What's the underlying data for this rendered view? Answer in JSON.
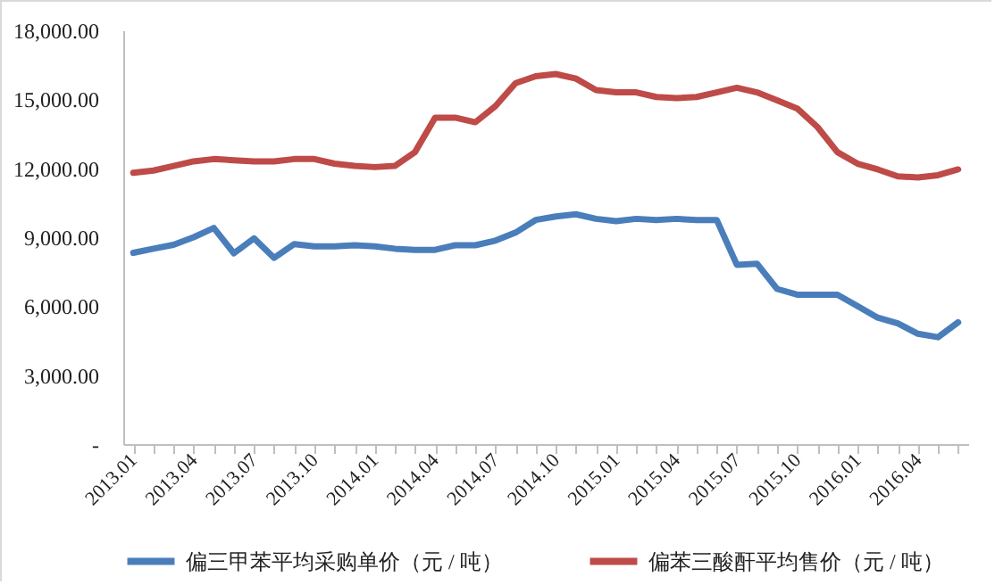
{
  "chart_data": {
    "type": "line",
    "categories": [
      "2013.01",
      null,
      null,
      "2013.04",
      null,
      null,
      "2013.07",
      null,
      null,
      "2013.10",
      null,
      null,
      "2014.01",
      null,
      null,
      "2014.04",
      null,
      null,
      "2014.07",
      null,
      null,
      "2014.10",
      null,
      null,
      "2015.01",
      null,
      null,
      "2015.04",
      null,
      null,
      "2015.07",
      null,
      null,
      "2015.10",
      null,
      null,
      "2016.01",
      null,
      null,
      "2016.04",
      null,
      null
    ],
    "series": [
      {
        "name": "偏三甲苯平均采购单价（元 / 吨）",
        "color": "#4a7ebb",
        "values": [
          8320,
          8500,
          8670,
          9000,
          9400,
          8300,
          8950,
          8100,
          8700,
          8600,
          8600,
          8650,
          8600,
          8500,
          8450,
          8450,
          8650,
          8650,
          8850,
          9200,
          9750,
          9900,
          10000,
          9800,
          9700,
          9800,
          9750,
          9800,
          9750,
          9750,
          7800,
          7850,
          6750,
          6500,
          6500,
          6500,
          6000,
          5500,
          5250,
          4800,
          4650,
          5300
        ]
      },
      {
        "name": "偏苯三酸酐平均售价（元 / 吨）",
        "color": "#be4b48",
        "values": [
          11800,
          11900,
          12100,
          12300,
          12400,
          12350,
          12300,
          12300,
          12400,
          12400,
          12200,
          12100,
          12050,
          12100,
          12700,
          14200,
          14200,
          14000,
          14700,
          15700,
          16000,
          16100,
          15900,
          15400,
          15300,
          15300,
          15100,
          15050,
          15100,
          15300,
          15500,
          15300,
          14950,
          14600,
          13800,
          12700,
          12200,
          11950,
          11650,
          11600,
          11700,
          11950
        ]
      }
    ],
    "ylim": [
      0,
      18000
    ],
    "yticks": [
      {
        "value": 0,
        "label": "-"
      },
      {
        "value": 3000,
        "label": "3,000.00"
      },
      {
        "value": 6000,
        "label": "6,000.00"
      },
      {
        "value": 9000,
        "label": "9,000.00"
      },
      {
        "value": 12000,
        "label": "12,000.00"
      },
      {
        "value": 15000,
        "label": "15,000.00"
      },
      {
        "value": 18000,
        "label": "18,000.00"
      }
    ],
    "legend": "bottom",
    "grid": false,
    "marker": "none",
    "line_style": "solid"
  }
}
